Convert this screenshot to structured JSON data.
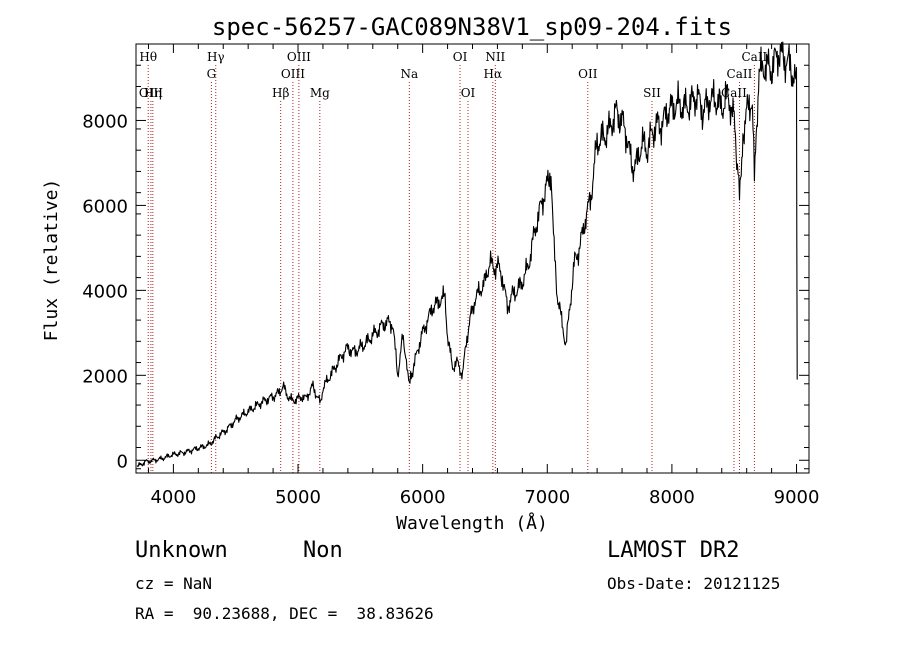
{
  "chart_data": {
    "type": "line",
    "title": "spec-56257-GAC089N38V1_sp09-204.fits",
    "xlabel": "Wavelength (Å)",
    "ylabel": "Flux (relative)",
    "xlim": [
      3700,
      9100
    ],
    "ylim": [
      -300,
      9800
    ],
    "xticks": [
      4000,
      5000,
      6000,
      7000,
      8000,
      9000
    ],
    "xtick_labels": [
      "4000",
      "5000",
      "6000",
      "7000",
      "8000",
      "9000"
    ],
    "yticks": [
      0,
      2000,
      4000,
      6000,
      8000
    ],
    "ytick_labels": [
      "0",
      "2000",
      "4000",
      "6000",
      "8000"
    ],
    "grid": false,
    "line_color": "#000000",
    "marker_color": "#b22222",
    "spectral_lines": [
      {
        "name": "Hθ",
        "x": 3798,
        "row": 0
      },
      {
        "name": "OIII",
        "x": 3820,
        "row": 2
      },
      {
        "name": "Hη",
        "x": 3835,
        "row": 2
      },
      {
        "name": "Hγ",
        "x": 4340,
        "row": 0
      },
      {
        "name": "G",
        "x": 4305,
        "row": 1
      },
      {
        "name": "Hβ",
        "x": 4861,
        "row": 2
      },
      {
        "name": "OIII",
        "x": 4959,
        "row": 1
      },
      {
        "name": "OIII",
        "x": 5007,
        "row": 0
      },
      {
        "name": "Mg",
        "x": 5175,
        "row": 2
      },
      {
        "name": "Na",
        "x": 5893,
        "row": 1
      },
      {
        "name": "OI",
        "x": 6300,
        "row": 0
      },
      {
        "name": "OI",
        "x": 6364,
        "row": 2
      },
      {
        "name": "NII",
        "x": 6583,
        "row": 0
      },
      {
        "name": "Hα",
        "x": 6563,
        "row": 1
      },
      {
        "name": "OII",
        "x": 7325,
        "row": 1
      },
      {
        "name": "SII",
        "x": 7840,
        "row": 2
      },
      {
        "name": "CaII",
        "x": 8662,
        "row": 0
      },
      {
        "name": "CaII",
        "x": 8542,
        "row": 1
      },
      {
        "name": "CaII",
        "x": 8498,
        "row": 2
      }
    ],
    "series": [
      {
        "x": [
          3710,
          3740,
          3780,
          3830,
          3880,
          3930,
          3980,
          4030,
          4080,
          4130,
          4180,
          4230,
          4280,
          4310,
          4340,
          4380,
          4420,
          4460,
          4500,
          4550,
          4600,
          4650,
          4700,
          4750,
          4800,
          4850,
          4880,
          4910,
          4950,
          5000,
          5030,
          5060,
          5090,
          5120,
          5160,
          5180,
          5200,
          5240,
          5280,
          5320,
          5360,
          5400,
          5440,
          5480,
          5520,
          5560,
          5600,
          5640,
          5680,
          5720,
          5760,
          5800,
          5840,
          5870,
          5893,
          5920,
          5960,
          6000,
          6040,
          6080,
          6120,
          6150,
          6180,
          6200,
          6240,
          6280,
          6320,
          6350,
          6380,
          6420,
          6460,
          6500,
          6540,
          6570,
          6600,
          6640,
          6680,
          6720,
          6760,
          6800,
          6850,
          6900,
          6950,
          7000,
          7030,
          7050,
          7080,
          7120,
          7150,
          7180,
          7220,
          7260,
          7300,
          7350,
          7400,
          7450,
          7500,
          7550,
          7600,
          7640,
          7680,
          7720,
          7760,
          7800,
          7840,
          7880,
          7920,
          7960,
          8000,
          8050,
          8100,
          8150,
          8200,
          8250,
          8300,
          8350,
          8400,
          8450,
          8500,
          8520,
          8542,
          8570,
          8600,
          8640,
          8662,
          8700,
          8750,
          8800,
          8850,
          8900,
          8950,
          9000,
          9005
        ],
        "values": [
          -150,
          -100,
          -30,
          -10,
          20,
          60,
          120,
          150,
          180,
          220,
          270,
          310,
          360,
          430,
          520,
          620,
          700,
          820,
          950,
          1050,
          1150,
          1250,
          1350,
          1430,
          1500,
          1600,
          1750,
          1550,
          1400,
          1450,
          1500,
          1450,
          1600,
          1750,
          1450,
          1350,
          1700,
          1900,
          2100,
          2300,
          2500,
          2650,
          2550,
          2600,
          2700,
          2800,
          2950,
          3050,
          3200,
          3250,
          3200,
          2000,
          2900,
          2400,
          1800,
          2100,
          2600,
          3000,
          3300,
          3600,
          3700,
          3800,
          3850,
          2900,
          2200,
          2300,
          2000,
          2800,
          3300,
          3800,
          4000,
          4200,
          4700,
          4500,
          4600,
          4300,
          3600,
          3900,
          4000,
          4200,
          4600,
          5400,
          6000,
          6500,
          6800,
          5200,
          3900,
          3200,
          2700,
          3600,
          4700,
          5000,
          5600,
          6200,
          7500,
          7600,
          7800,
          8200,
          8000,
          7600,
          6900,
          7000,
          7500,
          7300,
          7700,
          7900,
          7900,
          8200,
          8300,
          8400,
          8300,
          8400,
          8600,
          8200,
          8500,
          8500,
          8300,
          8600,
          8000,
          7200,
          6200,
          7700,
          8200,
          8500,
          7000,
          9100,
          9300,
          9200,
          9600,
          9450,
          9300,
          8800,
          1900
        ]
      }
    ]
  },
  "info": {
    "object_class": "Unknown",
    "subclass": "Non",
    "survey": "LAMOST DR2",
    "cz": "cz = NaN",
    "obs_date": "Obs-Date: 20121125",
    "coords": "RA =  90.23688, DEC =  38.83626"
  }
}
